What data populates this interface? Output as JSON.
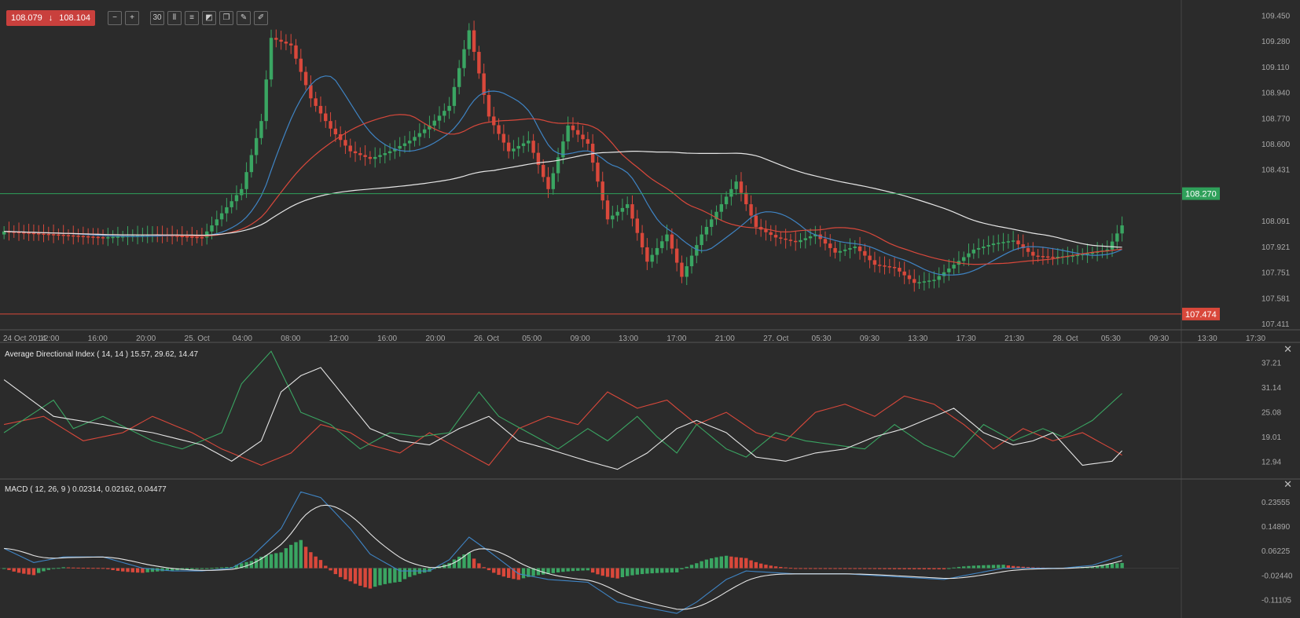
{
  "toolbar": {
    "bid": "108.079",
    "ask": "108.104",
    "direction_icon": "arrow-down-icon",
    "tools": [
      {
        "name": "zoom-out-icon",
        "glyph": "−"
      },
      {
        "name": "zoom-in-icon",
        "glyph": "+"
      },
      {
        "name": "timeframe-30-icon",
        "glyph": "30"
      },
      {
        "name": "candlestick-icon",
        "glyph": "⫼"
      },
      {
        "name": "indicators-icon",
        "glyph": "≡"
      },
      {
        "name": "chart-type-icon",
        "glyph": "◩"
      },
      {
        "name": "copy-icon",
        "glyph": "❐"
      },
      {
        "name": "edit-icon",
        "glyph": "✎"
      },
      {
        "name": "draw-icon",
        "glyph": "✐"
      }
    ]
  },
  "colors": {
    "background": "#2b2b2b",
    "bull": "#3aa562",
    "bear": "#d9483b",
    "ma_fast": "#3f84c4",
    "ma_mid": "#d9483b",
    "ma_slow": "#e6e6e6",
    "level_green": "#2fa05a",
    "level_red": "#d9483b"
  },
  "chart_data": [
    {
      "type": "candlestick",
      "y_axis_ticks": [
        "109.450",
        "109.280",
        "109.110",
        "108.940",
        "108.770",
        "108.600",
        "108.431",
        "108.270",
        "108.091",
        "107.921",
        "107.751",
        "107.581",
        "107.474",
        "107.411"
      ],
      "ylim": [
        107.38,
        109.54
      ],
      "x_axis_ticks": [
        "24 Oct 2014",
        "12:00",
        "16:00",
        "20:00",
        "25. Oct",
        "04:00",
        "08:00",
        "12:00",
        "16:00",
        "20:00",
        "26. Oct",
        "05:00",
        "09:00",
        "13:00",
        "17:00",
        "21:00",
        "27. Oct",
        "05:30",
        "09:30",
        "13:30",
        "17:30",
        "21:30",
        "28. Oct",
        "05:30",
        "09:30",
        "13:30",
        "17:30"
      ],
      "levels": [
        {
          "value": 108.27,
          "label": "108.270",
          "color": "#2fa05a"
        },
        {
          "value": 107.474,
          "label": "107.474",
          "color": "#d9483b"
        }
      ],
      "close_anchors": [
        [
          0,
          108.02
        ],
        [
          10,
          108.0
        ],
        [
          20,
          107.98
        ],
        [
          30,
          108.0
        ],
        [
          40,
          107.98
        ],
        [
          48,
          108.3
        ],
        [
          52,
          108.75
        ],
        [
          54,
          109.3
        ],
        [
          58,
          109.25
        ],
        [
          62,
          108.9
        ],
        [
          66,
          108.7
        ],
        [
          70,
          108.55
        ],
        [
          74,
          108.5
        ],
        [
          78,
          108.55
        ],
        [
          82,
          108.62
        ],
        [
          86,
          108.72
        ],
        [
          90,
          108.85
        ],
        [
          94,
          109.35
        ],
        [
          98,
          108.78
        ],
        [
          102,
          108.55
        ],
        [
          106,
          108.62
        ],
        [
          110,
          108.3
        ],
        [
          114,
          108.72
        ],
        [
          118,
          108.6
        ],
        [
          122,
          108.1
        ],
        [
          126,
          108.2
        ],
        [
          130,
          107.82
        ],
        [
          134,
          108.0
        ],
        [
          137,
          107.72
        ],
        [
          141,
          108.0
        ],
        [
          145,
          108.2
        ],
        [
          148,
          108.35
        ],
        [
          152,
          108.05
        ],
        [
          156,
          107.98
        ],
        [
          160,
          107.95
        ],
        [
          164,
          108.0
        ],
        [
          168,
          107.88
        ],
        [
          172,
          107.92
        ],
        [
          176,
          107.8
        ],
        [
          180,
          107.78
        ],
        [
          184,
          107.68
        ],
        [
          188,
          107.7
        ],
        [
          192,
          107.8
        ],
        [
          196,
          107.9
        ],
        [
          200,
          107.94
        ],
        [
          204,
          107.96
        ],
        [
          208,
          107.86
        ],
        [
          212,
          107.85
        ],
        [
          216,
          107.86
        ],
        [
          220,
          107.88
        ],
        [
          223,
          107.9
        ],
        [
          226,
          108.06
        ]
      ],
      "series": [
        {
          "name": "",
          "type": "moving-average",
          "period": 14,
          "color": "#3f84c4"
        },
        {
          "name": "",
          "type": "moving-average",
          "period": 30,
          "color": "#d9483b"
        },
        {
          "name": "",
          "type": "moving-average",
          "period": 100,
          "color": "#e6e6e6"
        }
      ]
    },
    {
      "type": "line",
      "title": "Average Directional Index ( 14, 14 ) 15.57, 29.62, 14.47",
      "y_axis_ticks": [
        "37.21",
        "31.14",
        "25.08",
        "19.01",
        "12.94"
      ],
      "ylim": [
        9.2,
        41.4
      ],
      "adx_anchors": [
        [
          0,
          33
        ],
        [
          10,
          24
        ],
        [
          20,
          22
        ],
        [
          30,
          20
        ],
        [
          40,
          17
        ],
        [
          46,
          13
        ],
        [
          52,
          18
        ],
        [
          56,
          30
        ],
        [
          60,
          34
        ],
        [
          64,
          36
        ],
        [
          68,
          30
        ],
        [
          74,
          21
        ],
        [
          80,
          18
        ],
        [
          86,
          17
        ],
        [
          92,
          21
        ],
        [
          98,
          24
        ],
        [
          104,
          18
        ],
        [
          110,
          16
        ],
        [
          118,
          13
        ],
        [
          124,
          11
        ],
        [
          130,
          15
        ],
        [
          136,
          21
        ],
        [
          140,
          23
        ],
        [
          146,
          20
        ],
        [
          152,
          14
        ],
        [
          158,
          13
        ],
        [
          164,
          15
        ],
        [
          170,
          16
        ],
        [
          176,
          19
        ],
        [
          182,
          21
        ],
        [
          188,
          24
        ],
        [
          192,
          26
        ],
        [
          198,
          20
        ],
        [
          204,
          17
        ],
        [
          208,
          18
        ],
        [
          212,
          20
        ],
        [
          218,
          12
        ],
        [
          224,
          13
        ],
        [
          226,
          15.57
        ]
      ],
      "plus_di_anchors": [
        [
          0,
          20
        ],
        [
          10,
          28
        ],
        [
          14,
          21
        ],
        [
          20,
          24
        ],
        [
          30,
          18
        ],
        [
          36,
          16
        ],
        [
          44,
          20
        ],
        [
          48,
          32
        ],
        [
          54,
          40
        ],
        [
          60,
          25
        ],
        [
          66,
          22
        ],
        [
          72,
          16
        ],
        [
          78,
          20
        ],
        [
          84,
          19
        ],
        [
          90,
          20
        ],
        [
          96,
          30
        ],
        [
          100,
          24
        ],
        [
          106,
          20
        ],
        [
          112,
          16
        ],
        [
          118,
          21
        ],
        [
          122,
          18
        ],
        [
          128,
          24
        ],
        [
          132,
          19
        ],
        [
          136,
          15
        ],
        [
          140,
          22
        ],
        [
          146,
          16
        ],
        [
          150,
          14
        ],
        [
          156,
          20
        ],
        [
          162,
          18
        ],
        [
          168,
          17
        ],
        [
          174,
          16
        ],
        [
          180,
          22
        ],
        [
          186,
          17
        ],
        [
          192,
          14
        ],
        [
          198,
          22
        ],
        [
          204,
          18
        ],
        [
          210,
          21
        ],
        [
          214,
          19
        ],
        [
          220,
          23
        ],
        [
          226,
          29.62
        ]
      ],
      "minus_di_anchors": [
        [
          0,
          22
        ],
        [
          8,
          24
        ],
        [
          16,
          18
        ],
        [
          24,
          20
        ],
        [
          30,
          24
        ],
        [
          38,
          20
        ],
        [
          44,
          16
        ],
        [
          52,
          12
        ],
        [
          58,
          15
        ],
        [
          64,
          22
        ],
        [
          70,
          20
        ],
        [
          74,
          17
        ],
        [
          80,
          15
        ],
        [
          86,
          20
        ],
        [
          92,
          16
        ],
        [
          98,
          12
        ],
        [
          104,
          21
        ],
        [
          110,
          24
        ],
        [
          116,
          22
        ],
        [
          122,
          30
        ],
        [
          128,
          26
        ],
        [
          134,
          28
        ],
        [
          140,
          22
        ],
        [
          146,
          25
        ],
        [
          152,
          20
        ],
        [
          158,
          18
        ],
        [
          164,
          25
        ],
        [
          170,
          27
        ],
        [
          176,
          24
        ],
        [
          182,
          29
        ],
        [
          188,
          27
        ],
        [
          194,
          22
        ],
        [
          200,
          16
        ],
        [
          206,
          21
        ],
        [
          212,
          18
        ],
        [
          218,
          20
        ],
        [
          224,
          16
        ],
        [
          226,
          14.47
        ]
      ],
      "legend_values": [
        "15.57",
        "29.62",
        "14.47"
      ]
    },
    {
      "type": "line",
      "title": "MACD ( 12, 26, 9 ) 0.02314, 0.02162, 0.04477",
      "y_axis_ticks": [
        "0.23555",
        "0.14890",
        "0.06225",
        "-0.02440",
        "-0.11105"
      ],
      "ylim": [
        -0.168,
        0.31
      ],
      "macd_anchors": [
        [
          0,
          0.07
        ],
        [
          6,
          0.02
        ],
        [
          12,
          0.04
        ],
        [
          20,
          0.04
        ],
        [
          28,
          0.0
        ],
        [
          34,
          -0.01
        ],
        [
          40,
          -0.01
        ],
        [
          46,
          0.0
        ],
        [
          50,
          0.04
        ],
        [
          56,
          0.14
        ],
        [
          60,
          0.27
        ],
        [
          64,
          0.25
        ],
        [
          70,
          0.14
        ],
        [
          74,
          0.05
        ],
        [
          80,
          -0.01
        ],
        [
          86,
          -0.01
        ],
        [
          90,
          0.03
        ],
        [
          94,
          0.11
        ],
        [
          98,
          0.06
        ],
        [
          104,
          -0.02
        ],
        [
          110,
          -0.04
        ],
        [
          118,
          -0.05
        ],
        [
          124,
          -0.12
        ],
        [
          130,
          -0.14
        ],
        [
          136,
          -0.16
        ],
        [
          140,
          -0.12
        ],
        [
          146,
          -0.04
        ],
        [
          150,
          -0.01
        ],
        [
          160,
          -0.02
        ],
        [
          170,
          -0.02
        ],
        [
          180,
          -0.03
        ],
        [
          190,
          -0.04
        ],
        [
          196,
          -0.02
        ],
        [
          202,
          0.0
        ],
        [
          208,
          0.0
        ],
        [
          214,
          0.0
        ],
        [
          220,
          0.01
        ],
        [
          226,
          0.045
        ]
      ],
      "legend_values": [
        "0.02314",
        "0.02162",
        "0.04477"
      ]
    }
  ]
}
